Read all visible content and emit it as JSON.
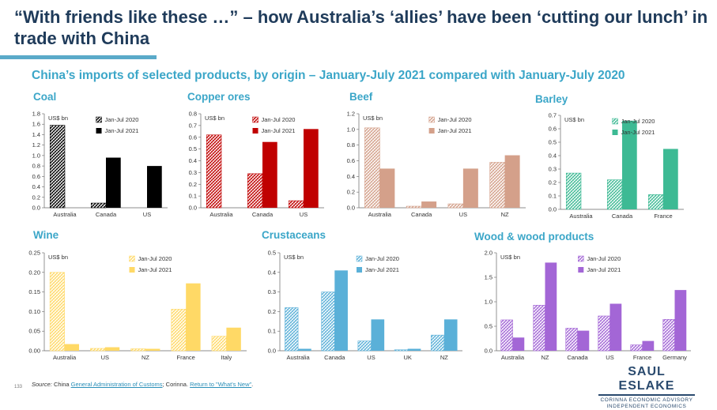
{
  "title": "“With friends like these …” – how Australia’s ‘allies’ have been ‘cutting our lunch’ in trade with China",
  "subtitle": "China’s imports of selected products, by origin – January-July 2021 compared with January-July 2020",
  "source": {
    "label": "Source:",
    "text1": " China ",
    "link1": "General Administration of Customs",
    "text2": "; Corinna. ",
    "link2": "Return to \"What's New\"",
    "text3": "."
  },
  "page_number": "133",
  "logo": {
    "name": "SAUL ESLAKE",
    "line1": "CORINNA ECONOMIC ADVISORY",
    "line2": "INDEPENDENT ECONOMICS"
  },
  "chart_data": [
    {
      "type": "bar",
      "title": "Coal",
      "ylabel": "US$ bn",
      "categories": [
        "Australia",
        "Canada",
        "US"
      ],
      "ylim": [
        0,
        1.8
      ],
      "ticks": [
        0,
        0.2,
        0.4,
        0.6,
        0.8,
        1.0,
        1.2,
        1.4,
        1.6,
        1.8
      ],
      "decimals": 1,
      "colors": {
        "fill": "#000000",
        "hatch_bg": "#ffffff"
      },
      "series": [
        {
          "name": "Jan-Jul 2020",
          "values": [
            1.58,
            0.09,
            0.0
          ]
        },
        {
          "name": "Jan-Jul 2021",
          "values": [
            0.0,
            0.96,
            0.8
          ]
        }
      ]
    },
    {
      "type": "bar",
      "title": "Copper ores",
      "ylabel": "US$ bn",
      "categories": [
        "Australia",
        "Canada",
        "US"
      ],
      "ylim": [
        0,
        0.8
      ],
      "ticks": [
        0,
        0.1,
        0.2,
        0.3,
        0.4,
        0.5,
        0.6,
        0.7,
        0.8
      ],
      "decimals": 1,
      "colors": {
        "fill": "#c00000",
        "hatch_bg": "#ffffff"
      },
      "series": [
        {
          "name": "Jan-Jul 2020",
          "values": [
            0.62,
            0.29,
            0.06
          ]
        },
        {
          "name": "Jan-Jul 2021",
          "values": [
            0.0,
            0.56,
            0.67
          ]
        }
      ]
    },
    {
      "type": "bar",
      "title": "Beef",
      "ylabel": "US$ bn",
      "categories": [
        "Australia",
        "Canada",
        "US",
        "NZ"
      ],
      "ylim": [
        0,
        1.2
      ],
      "ticks": [
        0,
        0.2,
        0.4,
        0.6,
        0.8,
        1.0,
        1.2
      ],
      "decimals": 1,
      "colors": {
        "fill": "#d4a08a",
        "hatch_bg": "#ffffff"
      },
      "series": [
        {
          "name": "Jan-Jul 2020",
          "values": [
            1.02,
            0.02,
            0.05,
            0.58
          ]
        },
        {
          "name": "Jan-Jul 2021",
          "values": [
            0.5,
            0.08,
            0.5,
            0.67
          ]
        }
      ]
    },
    {
      "type": "bar",
      "title": "Barley",
      "ylabel": "US$ bn",
      "categories": [
        "Australia",
        "Canada",
        "France"
      ],
      "ylim": [
        0,
        0.7
      ],
      "ticks": [
        0,
        0.1,
        0.2,
        0.3,
        0.4,
        0.5,
        0.6,
        0.7
      ],
      "decimals": 1,
      "colors": {
        "fill": "#3dba94",
        "hatch_bg": "#ffffff"
      },
      "series": [
        {
          "name": "Jan-Jul 2020",
          "values": [
            0.27,
            0.22,
            0.11
          ]
        },
        {
          "name": "Jan-Jul 2021",
          "values": [
            0.0,
            0.66,
            0.45
          ]
        }
      ]
    },
    {
      "type": "bar",
      "title": "Wine",
      "ylabel": "US$ bn",
      "categories": [
        "Australia",
        "US",
        "NZ",
        "France",
        "Italy"
      ],
      "ylim": [
        0,
        0.25
      ],
      "ticks": [
        0,
        0.05,
        0.1,
        0.15,
        0.2,
        0.25
      ],
      "decimals": 2,
      "colors": {
        "fill": "#ffd966",
        "hatch_bg": "#ffffff"
      },
      "series": [
        {
          "name": "Jan-Jul 2020",
          "values": [
            0.2,
            0.006,
            0.005,
            0.106,
            0.037
          ]
        },
        {
          "name": "Jan-Jul 2021",
          "values": [
            0.017,
            0.009,
            0.005,
            0.172,
            0.059
          ]
        }
      ]
    },
    {
      "type": "bar",
      "title": "Crustaceans",
      "ylabel": "US$ bn",
      "categories": [
        "Australia",
        "Canada",
        "US",
        "UK",
        "NZ"
      ],
      "ylim": [
        0,
        0.5
      ],
      "ticks": [
        0,
        0.1,
        0.2,
        0.3,
        0.4,
        0.5
      ],
      "decimals": 1,
      "colors": {
        "fill": "#5ab0d8",
        "hatch_bg": "#ffffff"
      },
      "series": [
        {
          "name": "Jan-Jul 2020",
          "values": [
            0.22,
            0.3,
            0.05,
            0.005,
            0.08
          ]
        },
        {
          "name": "Jan-Jul 2021",
          "values": [
            0.01,
            0.41,
            0.16,
            0.01,
            0.16
          ]
        }
      ]
    },
    {
      "type": "bar",
      "title": "Wood & wood products",
      "ylabel": "US$ bn",
      "categories": [
        "Australia",
        "NZ",
        "Canada",
        "US",
        "France",
        "Germany"
      ],
      "ylim": [
        0,
        2.0
      ],
      "ticks": [
        0,
        0.5,
        1.0,
        1.5,
        2.0
      ],
      "decimals": 1,
      "colors": {
        "fill": "#a366d6",
        "hatch_bg": "#ffffff"
      },
      "series": [
        {
          "name": "Jan-Jul 2020",
          "values": [
            0.63,
            0.93,
            0.46,
            0.71,
            0.12,
            0.64
          ]
        },
        {
          "name": "Jan-Jul 2021",
          "values": [
            0.27,
            1.8,
            0.41,
            0.96,
            0.2,
            1.24
          ]
        }
      ]
    }
  ]
}
